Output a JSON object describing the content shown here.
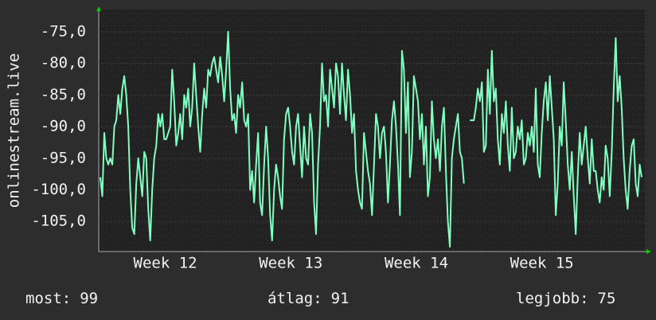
{
  "chart_data": {
    "type": "line",
    "y_label": "onlinestream.live",
    "ylim": [
      -109.75,
      -71.5
    ],
    "yticks": [
      {
        "value": -75,
        "label": "-75,0"
      },
      {
        "value": -80,
        "label": "-80,0"
      },
      {
        "value": -85,
        "label": "-85,0"
      },
      {
        "value": -90,
        "label": "-90,0"
      },
      {
        "value": -95,
        "label": "-95,0"
      },
      {
        "value": -100,
        "label": "-100,0"
      },
      {
        "value": -105,
        "label": "-105,0"
      }
    ],
    "xlim": [
      11.97,
      16.32
    ],
    "xticks": [
      {
        "value": 12.5,
        "label": "Week 12"
      },
      {
        "value": 13.5,
        "label": "Week 13"
      },
      {
        "value": 14.5,
        "label": "Week 14"
      },
      {
        "value": 15.5,
        "label": "Week 15"
      }
    ],
    "grid": true,
    "series": [
      {
        "color": "#80ffc0",
        "values": [
          -98,
          -101,
          -91,
          -95,
          -96,
          -95,
          -96,
          -90,
          -89,
          -85,
          -88,
          -84,
          -82,
          -85,
          -90,
          -100,
          -106,
          -107,
          -99,
          -95,
          -98,
          -101,
          -94,
          -95,
          -103,
          -108,
          -100,
          -95,
          -93,
          -88,
          -90,
          -88,
          -92,
          -92,
          -91,
          -90,
          -81,
          -86,
          -93,
          -91,
          -88,
          -92,
          -85,
          -87,
          -84,
          -90,
          -87,
          -80,
          -85,
          -90,
          -94,
          -88,
          -84,
          -87,
          -81,
          -82,
          -80,
          -79,
          -81,
          -83,
          -79,
          -82,
          -86,
          -81,
          -75,
          -84,
          -89,
          -88,
          -91,
          -85,
          -87,
          -83,
          -89,
          -90,
          -88,
          -100,
          -97,
          -102,
          -96,
          -91,
          -102,
          -104,
          -96,
          -90,
          -95,
          -104,
          -108,
          -100,
          -96,
          -98,
          -101,
          -103,
          -92,
          -88,
          -87,
          -90,
          -94,
          -96,
          -90,
          -88,
          -93,
          -98,
          -90,
          -95,
          -96,
          -88,
          -91,
          -102,
          -107,
          -96,
          -90,
          -80,
          -86,
          -85,
          -90,
          -81,
          -84,
          -87,
          -80,
          -82,
          -88,
          -80,
          -85,
          -89,
          -81,
          -85,
          -91,
          -88,
          -97,
          -100,
          -102,
          -103,
          -91,
          -94,
          -97,
          -99,
          -104,
          -96,
          -88,
          -90,
          -95,
          -91,
          -90,
          -94,
          -102,
          -96,
          -89,
          -86,
          -90,
          -96,
          -104,
          -78,
          -81,
          -91,
          -83,
          -98,
          -94,
          -82,
          -84,
          -86,
          -92,
          -88,
          -96,
          -90,
          -101,
          -98,
          -86,
          -92,
          -95,
          -92,
          -97,
          -90,
          -87,
          -97,
          -105,
          -109,
          -95,
          -92,
          -90,
          -88,
          -94,
          -95,
          -99,
          null,
          null,
          -89,
          -89,
          -89,
          -87,
          -84,
          -86,
          -83,
          -94,
          -93,
          -81,
          -88,
          -78,
          -86,
          -84,
          -92,
          -96,
          -88,
          -91,
          -86,
          -93,
          -97,
          -87,
          -95,
          -94,
          -90,
          -92,
          -89,
          -96,
          -95,
          -91,
          -93,
          -90,
          -94,
          -84,
          -96,
          -98,
          -91,
          -86,
          -83,
          -89,
          -82,
          -87,
          -92,
          -104,
          -99,
          -90,
          -93,
          -83,
          -89,
          -96,
          -100,
          -94,
          -101,
          -107,
          -98,
          -91,
          -96,
          -93,
          -90,
          -95,
          -99,
          -92,
          -97,
          -97,
          -100,
          -102,
          -98,
          -100,
          -93,
          -95,
          -101,
          -94,
          -84,
          -76,
          -86,
          -82,
          -87,
          -95,
          -100,
          -103,
          -97,
          -93,
          -92,
          -99,
          -101,
          -96,
          -98
        ]
      }
    ]
  },
  "stats": [
    {
      "label": "most:",
      "value": 99
    },
    {
      "label": "átlag:",
      "value": 91
    },
    {
      "label": "legjobb:",
      "value": 75
    }
  ]
}
